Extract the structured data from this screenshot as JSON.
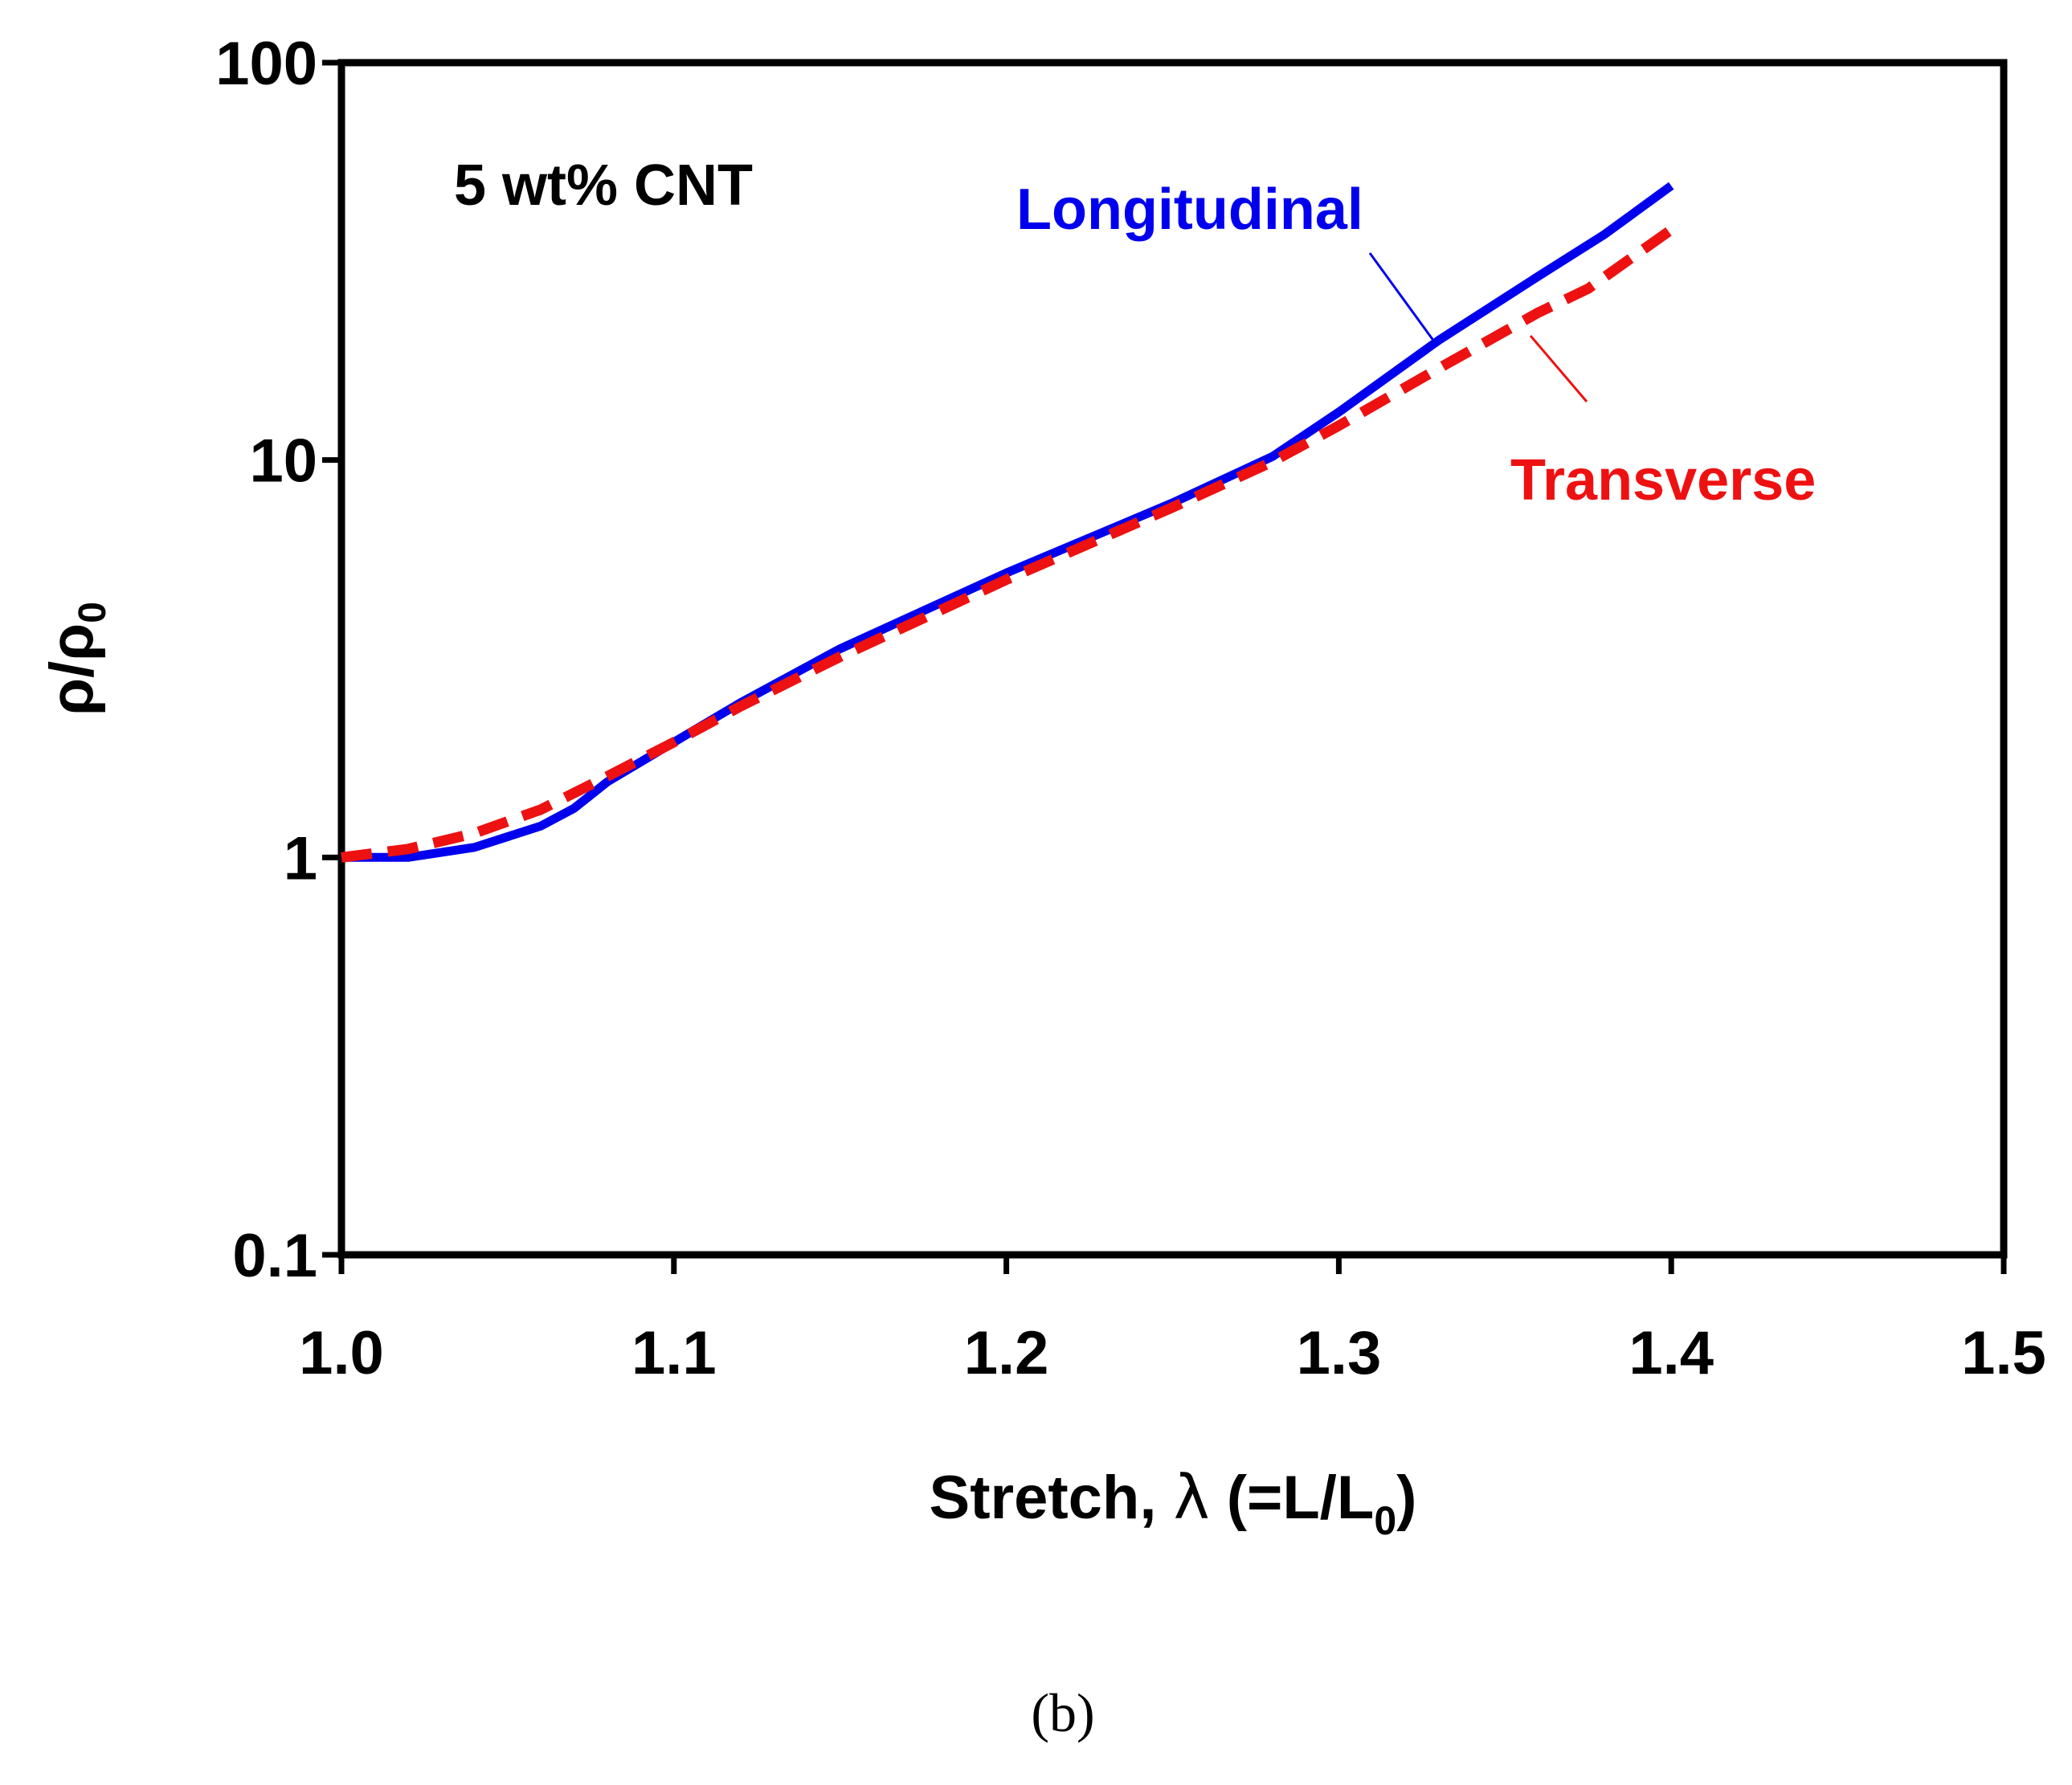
{
  "chart_data": {
    "type": "line",
    "title": "5 wt% CNT",
    "xlabel": {
      "main": "Stretch, ",
      "symbol": "λ",
      "open": " (=L/L",
      "sub": "0",
      "close": ")"
    },
    "ylabel": {
      "rho1": "ρ/ρ",
      "sub": "0"
    },
    "x_scale": "linear",
    "y_scale": "log",
    "xlim": [
      1.0,
      1.5
    ],
    "ylim": [
      0.1,
      100
    ],
    "xticks": [
      1.0,
      1.1,
      1.2,
      1.3,
      1.4,
      1.5
    ],
    "xtick_labels": [
      "1.0",
      "1.1",
      "1.2",
      "1.3",
      "1.4",
      "1.5"
    ],
    "yticks": [
      0.1,
      1,
      10,
      100
    ],
    "ytick_labels": [
      "0.1",
      "1",
      "10",
      "100"
    ],
    "grid": false,
    "series": [
      {
        "name": "Longitudinal",
        "color": "#0000ee",
        "style": "solid",
        "x": [
          1.0,
          1.02,
          1.04,
          1.06,
          1.07,
          1.08,
          1.1,
          1.12,
          1.15,
          1.2,
          1.25,
          1.28,
          1.3,
          1.33,
          1.36,
          1.38,
          1.4
        ],
        "y": [
          1.0,
          1.0,
          1.06,
          1.2,
          1.33,
          1.55,
          1.95,
          2.45,
          3.35,
          5.2,
          7.8,
          10.2,
          13.2,
          20.0,
          29.0,
          37.0,
          49.0
        ]
      },
      {
        "name": "Transverse",
        "color": "#ee1111",
        "style": "dashed",
        "x": [
          1.0,
          1.02,
          1.04,
          1.06,
          1.08,
          1.1,
          1.12,
          1.15,
          1.2,
          1.25,
          1.28,
          1.3,
          1.33,
          1.36,
          1.375,
          1.4
        ],
        "y": [
          1.0,
          1.05,
          1.15,
          1.32,
          1.6,
          1.95,
          2.4,
          3.2,
          5.0,
          7.6,
          9.9,
          12.2,
          17.0,
          23.5,
          27.0,
          38.0
        ]
      }
    ],
    "annotations": [
      "Longitudinal",
      "Transverse"
    ]
  },
  "caption": "(b)"
}
